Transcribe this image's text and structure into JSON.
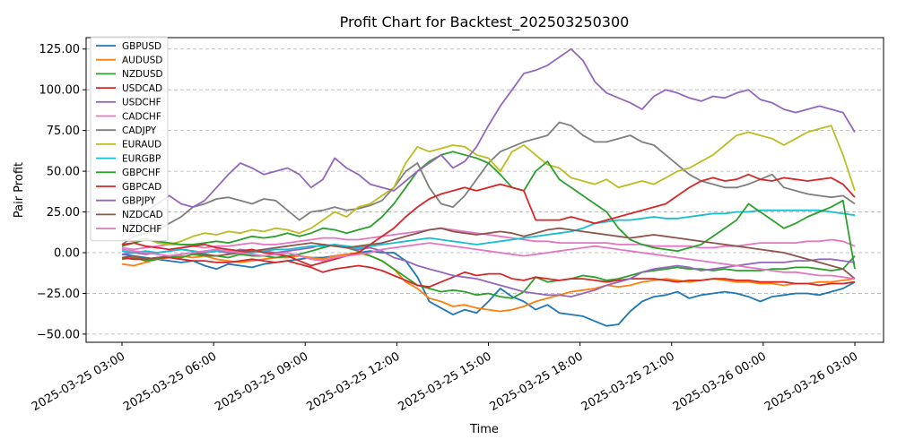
{
  "chart_data": {
    "type": "line",
    "title": "Profit Chart for Backtest_202503250300",
    "xlabel": "Time",
    "ylabel": "Pair Profit",
    "x_start": "2025-03-25 03:00",
    "x_end": "2025-03-26 03:00",
    "x_ticks": [
      "2025-03-25 03:00",
      "2025-03-25 06:00",
      "2025-03-25 09:00",
      "2025-03-25 12:00",
      "2025-03-25 15:00",
      "2025-03-25 18:00",
      "2025-03-25 21:00",
      "2025-03-26 00:00",
      "2025-03-26 03:00"
    ],
    "y_ticks": [
      "125.00",
      "100.00",
      "75.00",
      "50.00",
      "25.00",
      "0.00",
      "−25.00",
      "−50.00"
    ],
    "ylim": [
      -55,
      132
    ],
    "grid": "horizontal dashed",
    "legend_position": "top-left",
    "series": [
      {
        "name": "GBPUSD",
        "color": "#1f77b4",
        "values": [
          -1,
          -2,
          -3,
          -4,
          -5,
          -6,
          -5,
          -8,
          -10,
          -7,
          -8,
          -9,
          -7,
          -6,
          -5,
          -4,
          -3,
          -3,
          -2,
          -1,
          0,
          1,
          0,
          0,
          -5,
          -15,
          -30,
          -34,
          -38,
          -35,
          -37,
          -30,
          -22,
          -27,
          -30,
          -35,
          -32,
          -37,
          -38,
          -39,
          -42,
          -45,
          -44,
          -36,
          -30,
          -27,
          -26,
          -24,
          -28,
          -26,
          -25,
          -24,
          -25,
          -27,
          -30,
          -27,
          -26,
          -25,
          -25,
          -26,
          -24,
          -22,
          -18
        ]
      },
      {
        "name": "AUDUSD",
        "color": "#ff7f0e",
        "values": [
          -7,
          -8,
          -6,
          -4,
          -3,
          -2,
          -3,
          -2,
          -4,
          -5,
          -6,
          -5,
          -4,
          -3,
          -3,
          -2,
          -3,
          -4,
          -2,
          -1,
          0,
          -2,
          -5,
          -10,
          -18,
          -22,
          -28,
          -30,
          -33,
          -32,
          -34,
          -35,
          -36,
          -35,
          -33,
          -30,
          -28,
          -26,
          -24,
          -23,
          -22,
          -20,
          -21,
          -20,
          -18,
          -17,
          -16,
          -17,
          -18,
          -17,
          -16,
          -17,
          -18,
          -18,
          -19,
          -19,
          -20,
          -19,
          -19,
          -18,
          -18,
          -17,
          -16
        ]
      },
      {
        "name": "NZDUSD",
        "color": "#2ca02c",
        "values": [
          -4,
          -3,
          -5,
          -4,
          -2,
          -3,
          -1,
          -2,
          -2,
          -3,
          -1,
          -2,
          -2,
          -3,
          -2,
          -1,
          1,
          3,
          5,
          3,
          1,
          -2,
          -5,
          -10,
          -15,
          -20,
          -22,
          -24,
          -23,
          -24,
          -26,
          -25,
          -27,
          -28,
          -24,
          -15,
          -18,
          -17,
          -16,
          -14,
          -15,
          -17,
          -16,
          -14,
          -12,
          -11,
          -10,
          -9,
          -10,
          -10,
          -11,
          -10,
          -11,
          -11,
          -11,
          -10,
          -10,
          -9,
          -9,
          -10,
          -11,
          -10,
          -2
        ]
      },
      {
        "name": "USDCAD",
        "color": "#d62728",
        "values": [
          -3,
          -4,
          -4,
          -3,
          -3,
          -4,
          -5,
          -5,
          -6,
          -6,
          -5,
          -4,
          -5,
          -6,
          -5,
          -7,
          -9,
          -12,
          -10,
          -9,
          -8,
          -9,
          -11,
          -14,
          -17,
          -20,
          -21,
          -18,
          -15,
          -12,
          -14,
          -13,
          -13,
          -16,
          -17,
          -15,
          -16,
          -17,
          -16,
          -16,
          -17,
          -18,
          -17,
          -16,
          -16,
          -16,
          -17,
          -18,
          -17,
          -17,
          -16,
          -16,
          -17,
          -17,
          -18,
          -18,
          -18,
          -19,
          -19,
          -20,
          -19,
          -19,
          -18
        ]
      },
      {
        "name": "USDCHF",
        "color": "#9467bd",
        "values": [
          -1,
          0,
          -1,
          0,
          1,
          2,
          1,
          0,
          1,
          0,
          2,
          1,
          1,
          0,
          1,
          2,
          3,
          5,
          4,
          3,
          2,
          3,
          1,
          -3,
          -5,
          -8,
          -10,
          -12,
          -14,
          -15,
          -16,
          -18,
          -20,
          -22,
          -24,
          -25,
          -26,
          -26,
          -27,
          -25,
          -23,
          -20,
          -18,
          -16,
          -12,
          -10,
          -9,
          -8,
          -9,
          -11,
          -10,
          -9,
          -8,
          -7,
          -6,
          -6,
          -6,
          -5,
          -5,
          -4,
          -4,
          -5,
          -6
        ]
      },
      {
        "name": "CADCHF",
        "color": "#e377c2",
        "values": [
          3,
          2,
          3,
          4,
          5,
          5,
          4,
          3,
          4,
          4,
          5,
          6,
          5,
          5,
          6,
          7,
          8,
          9,
          9,
          8,
          8,
          9,
          10,
          11,
          12,
          13,
          14,
          15,
          14,
          13,
          12,
          11,
          10,
          9,
          8,
          7,
          7,
          6,
          6,
          6,
          6,
          6,
          5,
          5,
          5,
          4,
          4,
          4,
          4,
          3,
          3,
          4,
          4,
          5,
          6,
          6,
          6,
          6,
          7,
          7,
          8,
          7,
          4
        ]
      },
      {
        "name": "CADJPY",
        "color": "#7f7f7f",
        "values": [
          5,
          10,
          12,
          14,
          18,
          22,
          28,
          30,
          33,
          34,
          32,
          30,
          33,
          32,
          26,
          20,
          25,
          26,
          28,
          26,
          27,
          29,
          32,
          40,
          50,
          55,
          40,
          30,
          28,
          35,
          45,
          55,
          62,
          65,
          68,
          70,
          72,
          80,
          78,
          72,
          68,
          68,
          70,
          72,
          68,
          66,
          60,
          54,
          48,
          44,
          42,
          40,
          40,
          42,
          45,
          48,
          40,
          38,
          36,
          35,
          34,
          35,
          30
        ]
      },
      {
        "name": "EURAUD",
        "color": "#bcbd22",
        "values": [
          8,
          7,
          9,
          6,
          5,
          7,
          10,
          12,
          11,
          13,
          12,
          14,
          13,
          15,
          14,
          12,
          15,
          20,
          25,
          22,
          28,
          30,
          35,
          40,
          55,
          65,
          62,
          64,
          66,
          65,
          60,
          58,
          50,
          62,
          66,
          60,
          54,
          52,
          46,
          44,
          42,
          45,
          40,
          42,
          44,
          42,
          46,
          50,
          52,
          56,
          60,
          66,
          72,
          74,
          72,
          70,
          66,
          70,
          74,
          76,
          78,
          60,
          38
        ]
      },
      {
        "name": "EURGBP",
        "color": "#17becf",
        "values": [
          1,
          0,
          1,
          0,
          1,
          2,
          1,
          0,
          1,
          2,
          1,
          0,
          1,
          2,
          2,
          3,
          4,
          4,
          5,
          4,
          3,
          4,
          5,
          6,
          7,
          8,
          9,
          8,
          7,
          6,
          5,
          6,
          7,
          8,
          9,
          10,
          11,
          12,
          13,
          15,
          18,
          19,
          20,
          20,
          21,
          22,
          21,
          21,
          22,
          23,
          24,
          24,
          25,
          25,
          26,
          26,
          26,
          26,
          26,
          26,
          25,
          24,
          23
        ]
      },
      {
        "name": "GBPCHF",
        "color": "#2ca02c",
        "values": [
          4,
          6,
          8,
          7,
          6,
          5,
          5,
          6,
          7,
          6,
          8,
          10,
          9,
          10,
          12,
          10,
          12,
          15,
          14,
          12,
          14,
          16,
          22,
          30,
          40,
          50,
          56,
          60,
          62,
          60,
          58,
          55,
          48,
          40,
          38,
          50,
          56,
          45,
          40,
          35,
          30,
          25,
          15,
          8,
          5,
          3,
          2,
          1,
          3,
          5,
          10,
          15,
          20,
          30,
          25,
          20,
          15,
          18,
          22,
          25,
          28,
          32,
          -10
        ]
      },
      {
        "name": "GBPCAD",
        "color": "#d62728",
        "values": [
          5,
          6,
          4,
          3,
          2,
          3,
          4,
          5,
          3,
          2,
          1,
          2,
          0,
          -1,
          -2,
          -5,
          -8,
          -6,
          -4,
          -2,
          0,
          5,
          10,
          15,
          22,
          28,
          33,
          36,
          38,
          40,
          38,
          40,
          42,
          40,
          38,
          20,
          20,
          20,
          22,
          20,
          18,
          20,
          22,
          24,
          26,
          28,
          30,
          35,
          40,
          44,
          46,
          44,
          45,
          48,
          45,
          44,
          46,
          45,
          44,
          45,
          46,
          42,
          34
        ]
      },
      {
        "name": "GBPJPY",
        "color": "#9467bd",
        "values": [
          10,
          20,
          25,
          30,
          35,
          30,
          28,
          32,
          40,
          48,
          55,
          52,
          48,
          50,
          52,
          48,
          40,
          45,
          58,
          52,
          48,
          42,
          40,
          38,
          44,
          50,
          55,
          60,
          52,
          56,
          65,
          78,
          90,
          100,
          110,
          112,
          115,
          120,
          125,
          118,
          105,
          98,
          95,
          92,
          88,
          96,
          100,
          98,
          95,
          93,
          96,
          95,
          98,
          100,
          94,
          92,
          88,
          86,
          88,
          90,
          88,
          86,
          74
        ]
      },
      {
        "name": "NZDCAD",
        "color": "#8c564b",
        "values": [
          -3,
          -2,
          -4,
          -3,
          -2,
          -1,
          0,
          -1,
          -2,
          -1,
          0,
          1,
          2,
          3,
          4,
          5,
          6,
          5,
          4,
          3,
          4,
          5,
          6,
          8,
          10,
          12,
          14,
          15,
          13,
          12,
          11,
          12,
          13,
          12,
          10,
          12,
          14,
          15,
          14,
          13,
          12,
          11,
          10,
          9,
          10,
          11,
          10,
          9,
          8,
          7,
          6,
          5,
          4,
          3,
          2,
          1,
          0,
          -2,
          -4,
          -6,
          -8,
          -10,
          -16
        ]
      },
      {
        "name": "NZDCHF",
        "color": "#e377c2",
        "values": [
          2,
          1,
          0,
          -1,
          -2,
          -1,
          0,
          1,
          2,
          1,
          0,
          -1,
          -2,
          -1,
          0,
          -2,
          -4,
          -5,
          -3,
          -2,
          -1,
          0,
          2,
          3,
          4,
          5,
          6,
          5,
          4,
          3,
          2,
          1,
          0,
          -1,
          -2,
          -1,
          0,
          1,
          2,
          3,
          4,
          3,
          2,
          1,
          0,
          -1,
          -2,
          -3,
          -4,
          -5,
          -6,
          -7,
          -8,
          -9,
          -10,
          -11,
          -12,
          -12,
          -13,
          -14,
          -14,
          -15,
          -16
        ]
      }
    ]
  }
}
